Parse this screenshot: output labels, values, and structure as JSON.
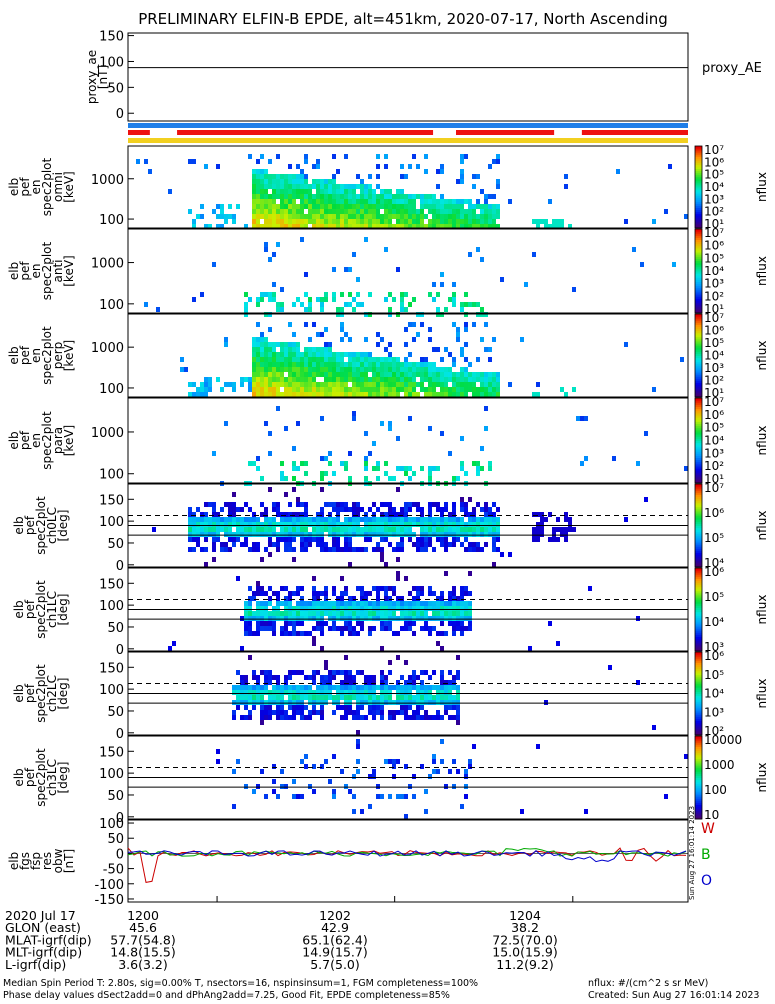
{
  "chart_data": {
    "type": "heatmap",
    "title": "PRELIMINARY ELFIN-B EPDE, alt=451km, 2020-07-17, North Ascending",
    "time_axis": {
      "min": 11.9833,
      "max": 12.0883,
      "ticks": [
        12.0,
        12.0333,
        12.0667
      ],
      "unit": "hours UT"
    },
    "panels": [
      {
        "id": "proxy_ae",
        "ylabel": [
          "proxy_ae",
          "[nT]"
        ],
        "yscale": "linear",
        "ylim": [
          -15,
          155
        ],
        "yticks": [
          "150",
          "100",
          "50",
          "0"
        ],
        "ytick_values": [
          150,
          100,
          50,
          0
        ],
        "side_label": "proxy_AE",
        "hline": 88
      },
      {
        "id": "en_omni",
        "ylabel": [
          "elb",
          "pef",
          "en",
          "spec2plot",
          "omni",
          "[keV]"
        ],
        "yscale": "log",
        "ylim": [
          60,
          6500
        ],
        "yticks": [
          "1000",
          "100"
        ],
        "ytick_values": [
          1000,
          100
        ],
        "cbar_ticks": [
          "10⁷",
          "10⁶",
          "10⁵",
          "10⁴",
          "10³",
          "10²",
          "10¹"
        ],
        "cbar_range": [
          1,
          7
        ],
        "cbar_label": "nflux"
      },
      {
        "id": "en_anti",
        "ylabel": [
          "elb",
          "pef",
          "en",
          "spec2plot",
          "anti",
          "[keV]"
        ],
        "yscale": "log",
        "ylim": [
          60,
          6500
        ],
        "yticks": [
          "1000",
          "100"
        ],
        "ytick_values": [
          1000,
          100
        ],
        "cbar_ticks": [
          "10⁷",
          "10⁶",
          "10⁵",
          "10⁴",
          "10³",
          "10²",
          "10¹"
        ],
        "cbar_range": [
          1,
          7
        ],
        "cbar_label": "nflux"
      },
      {
        "id": "en_perp",
        "ylabel": [
          "elb",
          "pef",
          "en",
          "spec2plot",
          "perp",
          "[keV]"
        ],
        "yscale": "log",
        "ylim": [
          60,
          6500
        ],
        "yticks": [
          "1000",
          "100"
        ],
        "ytick_values": [
          1000,
          100
        ],
        "cbar_ticks": [
          "10⁷",
          "10⁶",
          "10⁵",
          "10⁴",
          "10³",
          "10²",
          "10¹"
        ],
        "cbar_range": [
          1,
          7
        ],
        "cbar_label": "nflux"
      },
      {
        "id": "en_para",
        "ylabel": [
          "elb",
          "pef",
          "en",
          "spec2plot",
          "para",
          "[keV]"
        ],
        "yscale": "log",
        "ylim": [
          60,
          6500
        ],
        "yticks": [
          "1000",
          "100"
        ],
        "ytick_values": [
          1000,
          100
        ],
        "cbar_ticks": [
          "10⁷",
          "10⁶",
          "10⁵",
          "10⁴",
          "10³",
          "10²",
          "10¹"
        ],
        "cbar_range": [
          1,
          7
        ],
        "cbar_label": "nflux"
      },
      {
        "id": "ch0LC",
        "ylabel": [
          "elb",
          "pef",
          "spec2plot",
          "ch0LC",
          "[deg]"
        ],
        "yscale": "linear",
        "ylim": [
          -5,
          185
        ],
        "yticks": [
          "150",
          "100",
          "50",
          "0"
        ],
        "ytick_values": [
          150,
          100,
          50,
          0
        ],
        "hlines": [
          90,
          68
        ],
        "dashed": 113,
        "cbar_ticks": [
          "10⁷",
          "10⁶",
          "10⁵",
          "10⁴"
        ],
        "cbar_range": [
          3.6,
          7
        ],
        "cbar_label": "nflux"
      },
      {
        "id": "ch1LC",
        "ylabel": [
          "elb",
          "pef",
          "spec2plot",
          "ch1LC",
          "[deg]"
        ],
        "yscale": "linear",
        "ylim": [
          -5,
          185
        ],
        "yticks": [
          "150",
          "100",
          "50",
          "0"
        ],
        "ytick_values": [
          150,
          100,
          50,
          0
        ],
        "hlines": [
          90,
          68
        ],
        "dashed": 113,
        "cbar_ticks": [
          "10⁶",
          "10⁵",
          "10⁴",
          "10³"
        ],
        "cbar_range": [
          2.6,
          6.4
        ],
        "cbar_label": "nflux"
      },
      {
        "id": "ch2LC",
        "ylabel": [
          "elb",
          "pef",
          "spec2plot",
          "ch2LC",
          "[deg]"
        ],
        "yscale": "linear",
        "ylim": [
          -5,
          185
        ],
        "yticks": [
          "150",
          "100",
          "50",
          "0"
        ],
        "ytick_values": [
          150,
          100,
          50,
          0
        ],
        "hlines": [
          90,
          68
        ],
        "dashed": 113,
        "cbar_ticks": [
          "10⁶",
          "10⁵",
          "10⁴",
          "10³",
          "10²"
        ],
        "cbar_range": [
          1.7,
          6.2
        ],
        "cbar_label": "nflux"
      },
      {
        "id": "ch3LC",
        "ylabel": [
          "elb",
          "pef",
          "spec2plot",
          "ch3LC",
          "[deg]"
        ],
        "yscale": "linear",
        "ylim": [
          -5,
          185
        ],
        "yticks": [
          "150",
          "100",
          "50",
          "0"
        ],
        "ytick_values": [
          150,
          100,
          50,
          0
        ],
        "hlines": [
          90,
          68
        ],
        "dashed": 113,
        "cbar_ticks": [
          "10000",
          "1000",
          "100",
          "10"
        ],
        "cbar_range": [
          1,
          4.2
        ],
        "cbar_label": "nflux"
      },
      {
        "id": "fgs",
        "ylabel": [
          "elb",
          "fgs",
          "fsp",
          "res",
          "obw",
          "[nT]"
        ],
        "yscale": "linear",
        "ylim": [
          -160,
          110
        ],
        "yticks": [
          "100",
          "50",
          "0",
          "-50",
          "-100",
          "-150"
        ],
        "ytick_values": [
          100,
          50,
          0,
          -50,
          -100,
          -150
        ],
        "legend": [
          {
            "label": "W",
            "color": "#cc0000"
          },
          {
            "label": "B",
            "color": "#00aa00"
          },
          {
            "label": "O",
            "color": "#0000cc"
          }
        ]
      }
    ],
    "status_bars": [
      {
        "color": "#1e7ee8",
        "segments": [
          [
            11.9833,
            12.0883
          ]
        ]
      },
      {
        "color": "#ee1111",
        "segments": [
          [
            11.9833,
            11.9874
          ],
          [
            11.9925,
            12.0405
          ],
          [
            12.0448,
            12.0632
          ],
          [
            12.0684,
            12.0883
          ]
        ]
      },
      {
        "color": "#f2d020",
        "segments": [
          [
            11.9833,
            12.0883
          ]
        ]
      }
    ],
    "bottom_rows": [
      {
        "label": "2020 Jul 17",
        "values": [
          "1200",
          "1202",
          "1204"
        ]
      },
      {
        "label": "GLON (east)",
        "values": [
          "45.6",
          "42.9",
          "38.2"
        ]
      },
      {
        "label": "MLAT-igrf(dip)",
        "values": [
          "57.7(54.8)",
          "65.1(62.4)",
          "72.5(70.0)"
        ]
      },
      {
        "label": "MLT-igrf(dip)",
        "values": [
          "14.8(15.5)",
          "14.9(15.7)",
          "15.0(15.9)"
        ]
      },
      {
        "label": "L-igrf(dip)",
        "values": [
          "3.6(3.2)",
          "5.7(5.0)",
          "11.2(9.2)"
        ]
      }
    ],
    "footer": {
      "line1": "Median Spin Period T: 2.80s, sig=0.00% T, nsectors=16, nspinsinsum=1, FGM completeness=100%",
      "line2": "Phase delay values dSect2add=0 and dPhAng2add=7.25, Good Fit, EPDE completeness=85%",
      "units": "nflux: #/(cm^2 s sr MeV)",
      "created": "Created: Sun Aug 27 16:01:14 2023",
      "side_stamp": "Sun Aug 27 16:01:14 2023"
    }
  }
}
